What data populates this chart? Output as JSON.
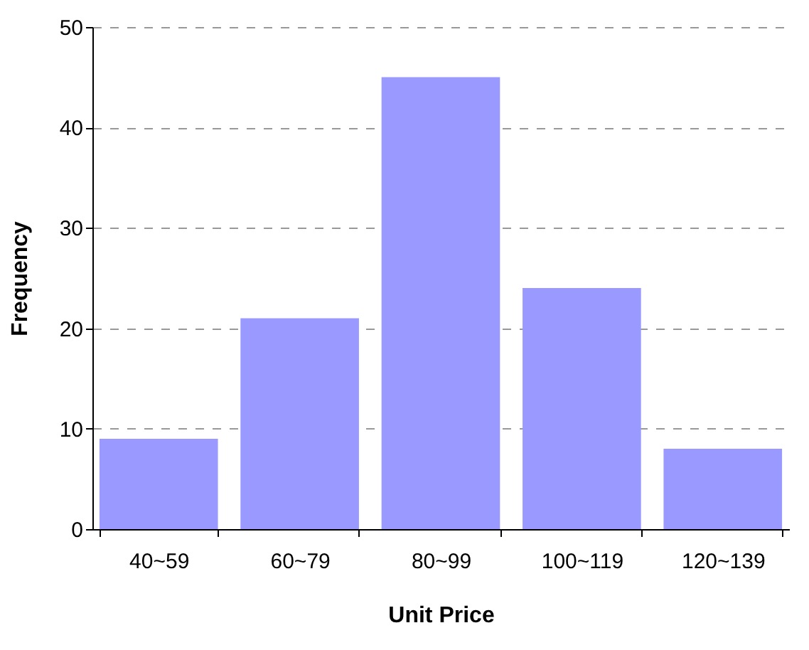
{
  "chart_data": {
    "type": "bar",
    "xlabel": "Unit Price",
    "ylabel": "Frequency",
    "categories": [
      "40~59",
      "60~79",
      "80~99",
      "100~119",
      "120~139"
    ],
    "values": [
      9,
      21,
      45,
      24,
      8
    ],
    "color": "#9999ff",
    "ylim": [
      0,
      50
    ],
    "yticks": [
      0,
      10,
      20,
      30,
      40,
      50
    ],
    "grid": "y"
  }
}
